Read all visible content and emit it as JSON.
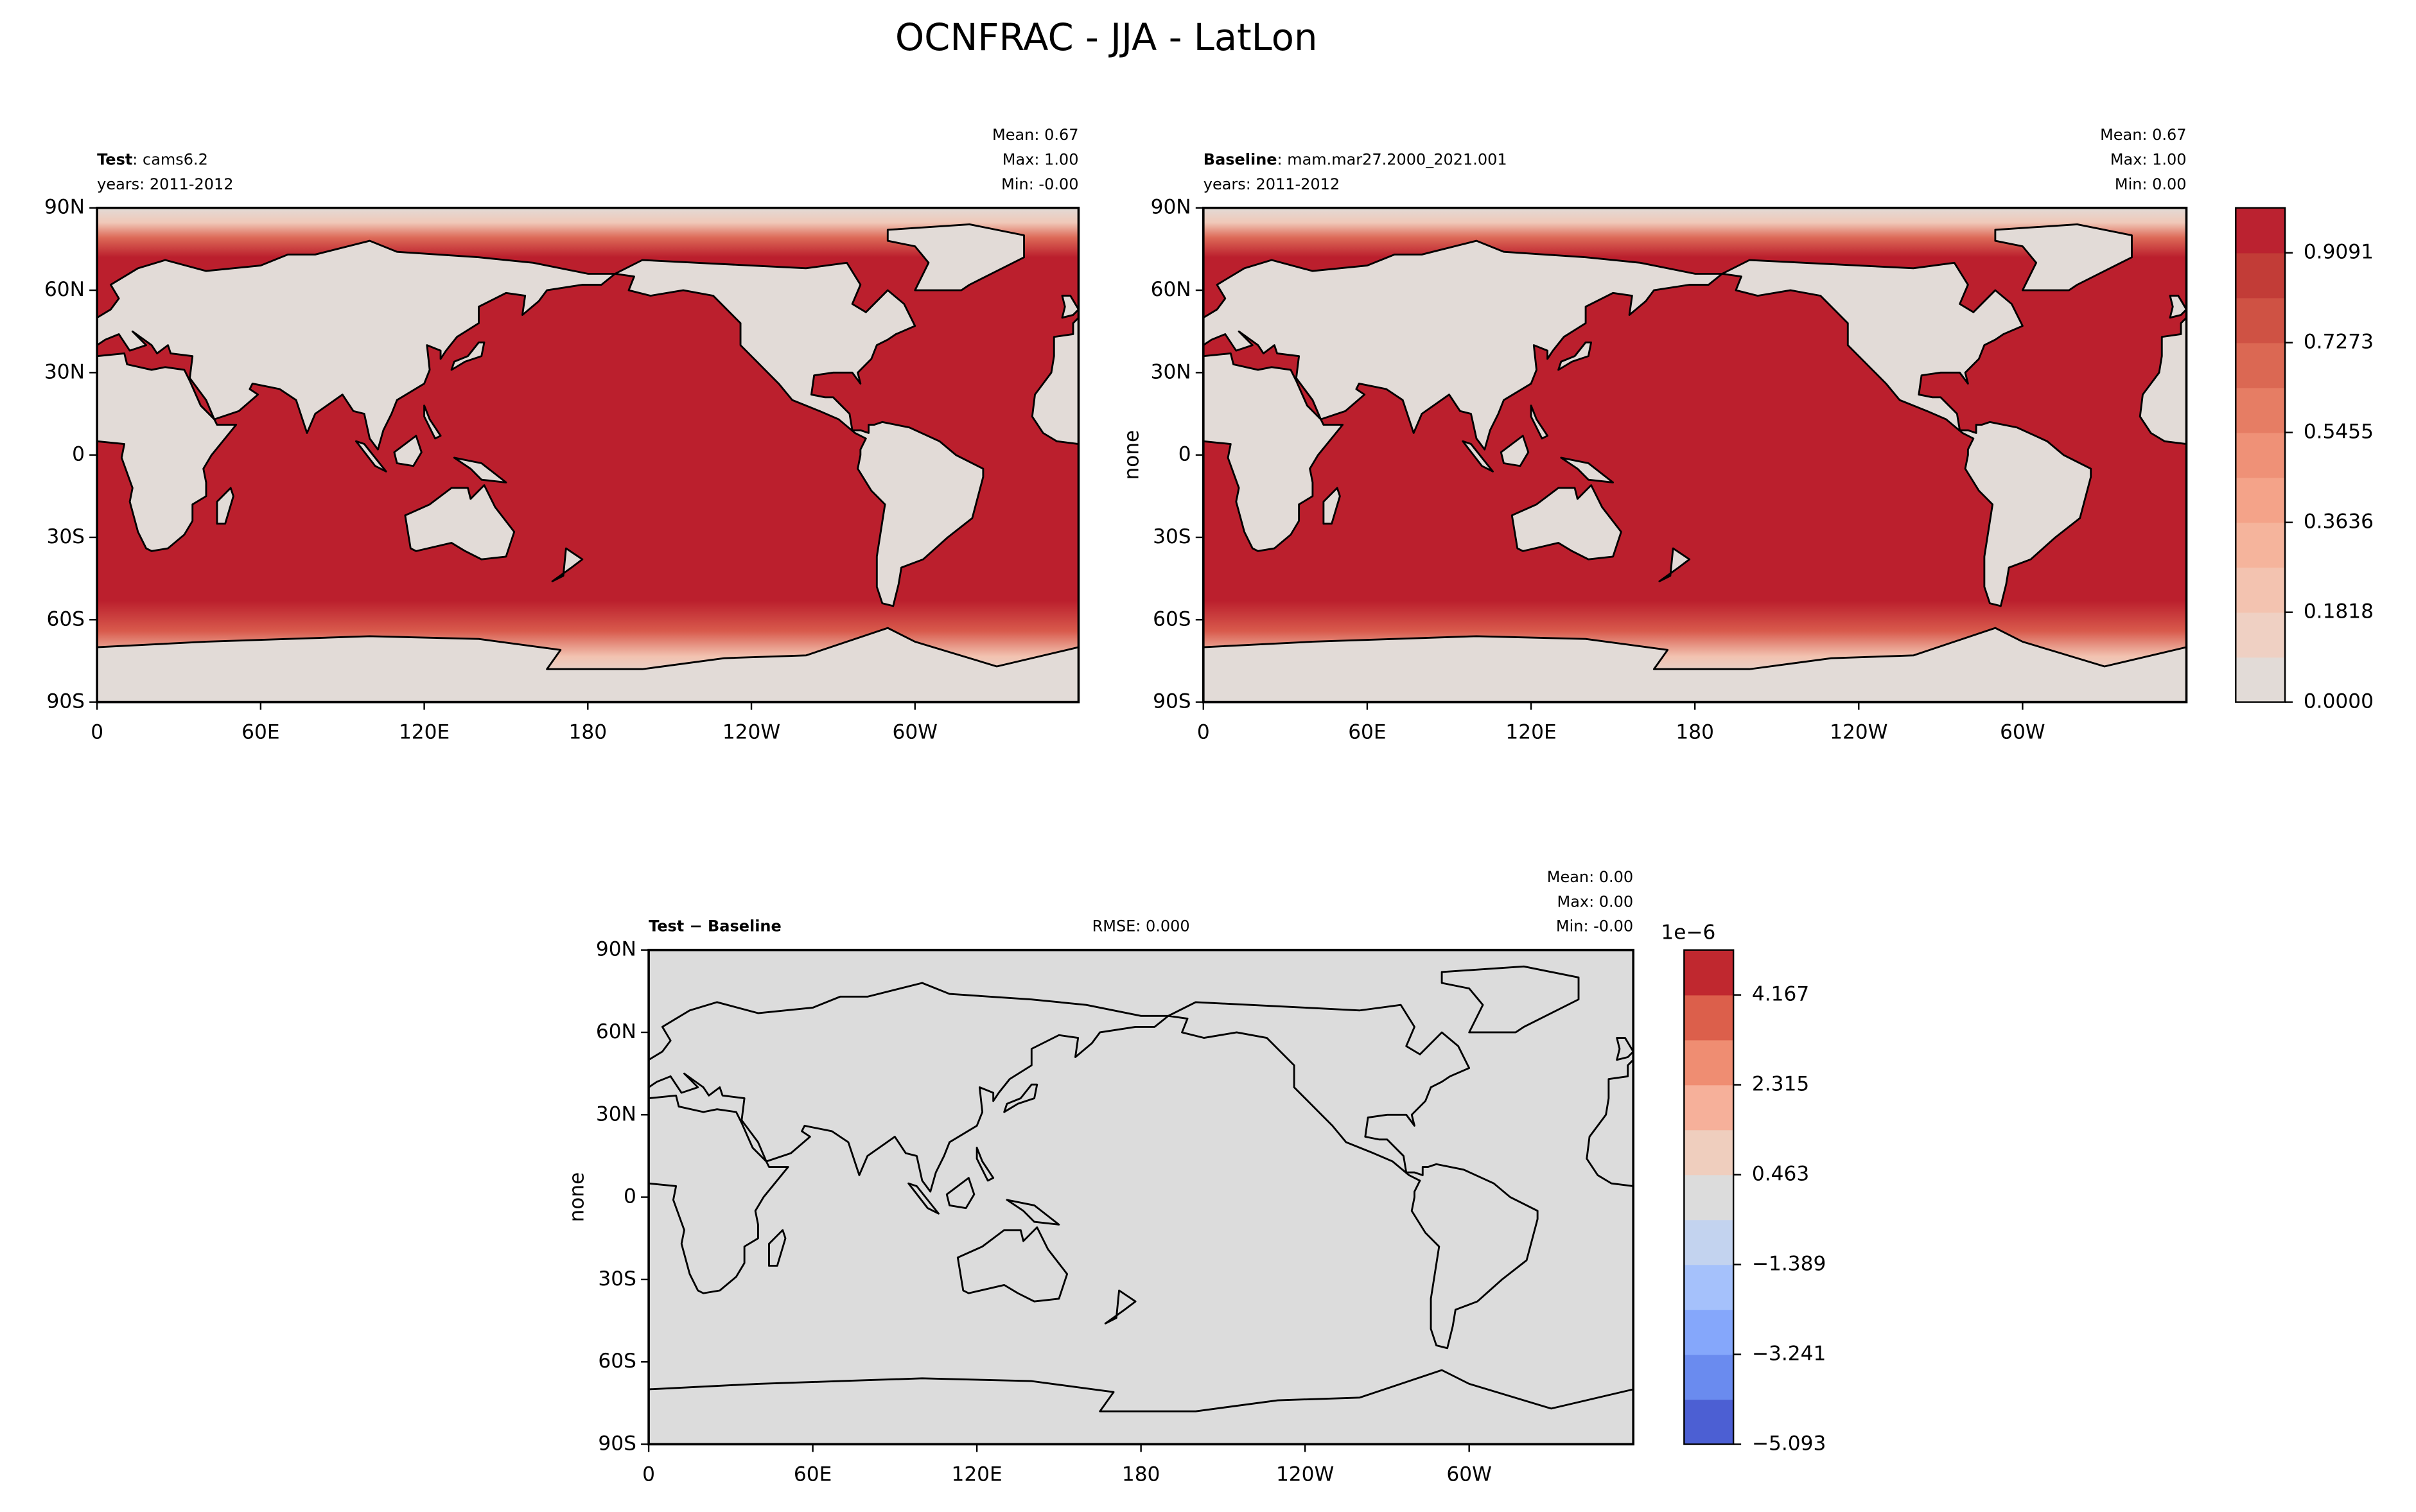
{
  "title": "OCNFRAC - JJA - LatLon",
  "xlim": [
    0,
    360
  ],
  "xticks": [
    0,
    {
      "value": 60,
      "label": "60E"
    },
    {
      "value": 120,
      "label": "120E"
    },
    180,
    {
      "value": 240,
      "label": "120W"
    },
    {
      "value": 300,
      "label": "60W"
    }
  ],
  "ylim": [
    -90,
    90
  ],
  "yticks": [
    {
      "value": 90,
      "label": "90N"
    },
    {
      "value": 60,
      "label": "60N"
    },
    {
      "value": 30,
      "label": "30N"
    },
    0,
    {
      "value": -30,
      "label": "30S"
    },
    {
      "value": -60,
      "label": "60S"
    },
    {
      "value": -90,
      "label": "90S"
    }
  ],
  "panels": [
    {
      "label_bold": "Test",
      "label": ": cams6.2",
      "years": "years: 2011-2012",
      "stats": [
        "Mean:  0.67",
        "Max:  1.00",
        "Min: -0.00"
      ]
    },
    {
      "label_bold": "Baseline",
      "label": ": mam.mar27.2000_2021.001",
      "years": "years: 2011-2012",
      "stats": [
        "Mean:  0.67",
        "Max:  1.00",
        "Min:  0.00"
      ],
      "ylabel": "none",
      "colorbar": {
        "lim": [
          0,
          1
        ],
        "ticks": [
          {
            "value": 0,
            "label": "0.0000"
          },
          0.1818,
          0.3636,
          0.5455,
          0.7273,
          0.9091
        ],
        "colors": [
          "#e2dbd7",
          "#efd0c3",
          "#f3c3b0",
          "#f5b49c",
          "#f4a389",
          "#ef9177",
          "#e67d64",
          "#db6853",
          "#cf5244",
          "#c23c37",
          "#bb2230"
        ]
      }
    },
    {
      "label_bold": "Test − Baseline",
      "rmse": "RMSE: 0.000",
      "stats": [
        "Mean:  0.00",
        "Max:  0.00",
        "Min: -0.00"
      ],
      "ylabel": "none",
      "colorbar": {
        "offset": "1e−6",
        "lim": [
          -5.093,
          5.093
        ],
        "ticks": [
          {
            "value": -5.093,
            "label": "−5.093"
          },
          {
            "value": -3.241,
            "label": "−3.241"
          },
          {
            "value": -1.389,
            "label": "−1.389"
          },
          0.463,
          2.315,
          4.167
        ],
        "colors": [
          "#4c5fd3",
          "#6a8bef",
          "#85a7fb",
          "#a5c1fb",
          "#c3d3ef",
          "#dcdcdc",
          "#efcebe",
          "#f6b09a",
          "#ef8d72",
          "#dc5f4b",
          "#c0282f"
        ]
      }
    }
  ]
}
